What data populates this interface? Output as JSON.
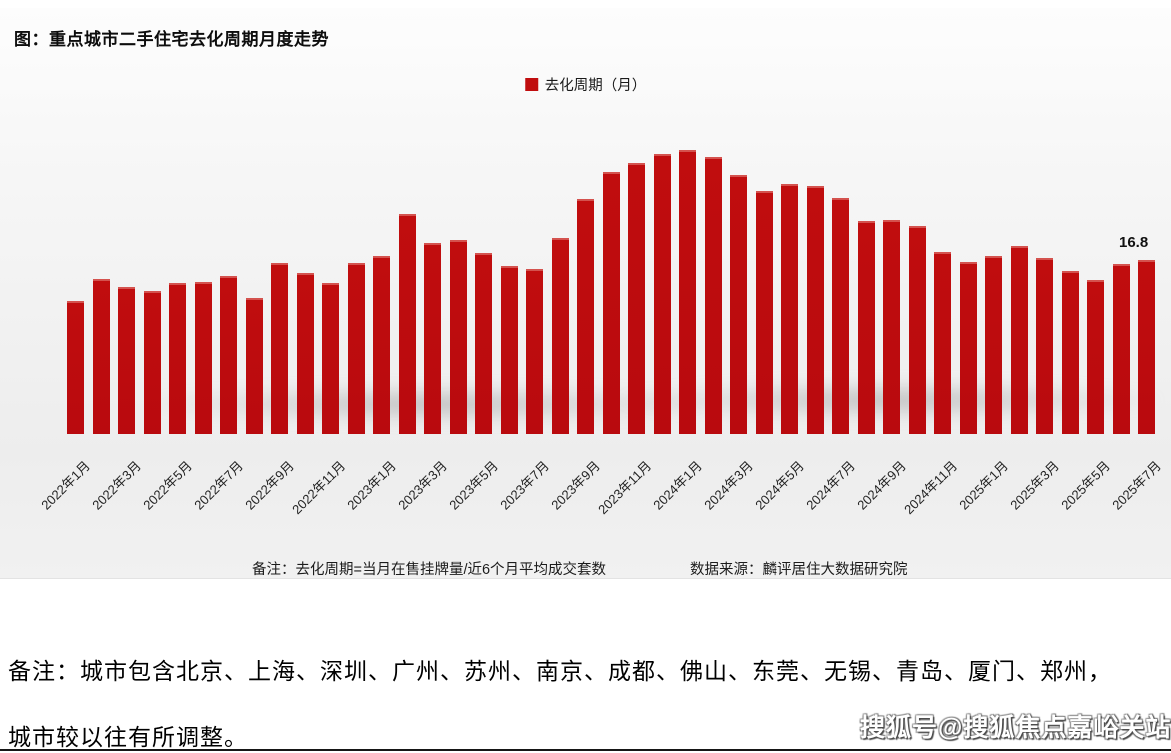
{
  "chart": {
    "title": "图：重点城市二手住宅去化周期月度走势",
    "legend_label": "去化周期（月）",
    "last_value_label": "16.8",
    "footnote_left": "备注：去化周期=当月在售挂牌量/近6个月平均成交套数",
    "footnote_right": "数据来源：麟评居住大数据研究院",
    "bar_color": "#c00d0e"
  },
  "page": {
    "note_line1": "备注：城市包含北京、上海、深圳、广州、苏州、南京、成都、佛山、东莞、无锡、青岛、厦门、郑州，",
    "note_line2": "城市较以往有所调整。",
    "watermark": "搜狐号@搜狐焦点嘉峪关站"
  },
  "chart_data": {
    "type": "bar",
    "title": "图：重点城市二手住宅去化周期月度走势",
    "legend": [
      "去化周期（月）"
    ],
    "series_name": "去化周期（月）",
    "x": [
      "2022年1月",
      "2022年2月",
      "2022年3月",
      "2022年4月",
      "2022年5月",
      "2022年6月",
      "2022年7月",
      "2022年8月",
      "2022年9月",
      "2022年10月",
      "2022年11月",
      "2022年12月",
      "2023年1月",
      "2023年2月",
      "2023年3月",
      "2023年4月",
      "2023年5月",
      "2023年6月",
      "2023年7月",
      "2023年8月",
      "2023年9月",
      "2023年10月",
      "2023年11月",
      "2023年12月",
      "2024年1月",
      "2024年2月",
      "2024年3月",
      "2024年4月",
      "2024年5月",
      "2024年6月",
      "2024年7月",
      "2024年8月",
      "2024年9月",
      "2024年10月",
      "2024年11月",
      "2024年12月",
      "2025年1月",
      "2025年2月",
      "2025年3月",
      "2025年4月",
      "2025年5月",
      "2025年6月",
      "2025年7月"
    ],
    "values": [
      12.8,
      15.0,
      14.2,
      13.8,
      14.6,
      14.7,
      15.3,
      13.1,
      16.5,
      15.5,
      14.6,
      16.5,
      17.2,
      21.2,
      18.4,
      18.7,
      17.5,
      16.2,
      15.9,
      18.9,
      22.7,
      25.3,
      26.2,
      27.0,
      27.4,
      26.7,
      25.0,
      23.5,
      24.1,
      23.9,
      22.8,
      20.6,
      20.7,
      20.1,
      17.6,
      16.6,
      17.2,
      18.2,
      17.0,
      15.7,
      14.9,
      16.4,
      16.8
    ],
    "x_tick_every": 2,
    "x_tick_rotation_deg": -45,
    "ylim": [
      0,
      28
    ],
    "y_axis_visible": false,
    "grid": false,
    "legend_position": "top-center",
    "data_labels": [
      {
        "x": "2025年7月",
        "label": "16.8"
      }
    ],
    "bar_color_hex": "#c00d0e"
  }
}
